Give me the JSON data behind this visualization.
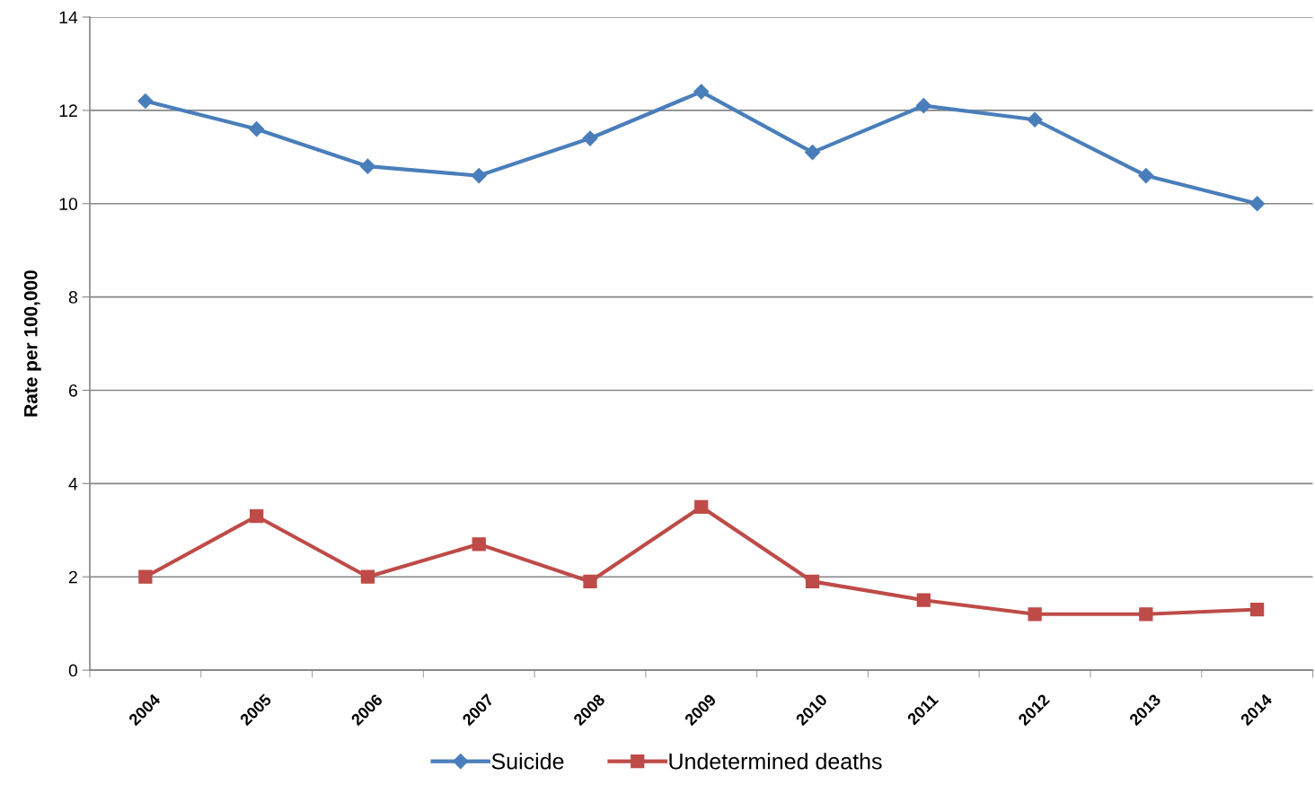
{
  "chart_data": {
    "type": "line",
    "ylabel": "Rate per 100,000",
    "categories": [
      "2004",
      "2005",
      "2006",
      "2007",
      "2008",
      "2009",
      "2010",
      "2011",
      "2012",
      "2013",
      "2014"
    ],
    "series": [
      {
        "name": "Suicide",
        "color": "#4a7ebb",
        "marker": "diamond",
        "values": [
          12.2,
          11.6,
          10.8,
          10.6,
          11.4,
          12.4,
          11.1,
          12.1,
          11.8,
          10.6,
          10.0
        ]
      },
      {
        "name": "Undetermined deaths",
        "color": "#be4b48",
        "marker": "square",
        "values": [
          2.0,
          3.3,
          2.0,
          2.7,
          1.9,
          3.5,
          1.9,
          1.5,
          1.2,
          1.2,
          1.3
        ]
      }
    ],
    "ylim": [
      0,
      14
    ],
    "yticks": [
      0,
      2,
      4,
      6,
      8,
      10,
      12,
      14
    ],
    "grid": "y",
    "legend": "bottom",
    "line_style": "solid"
  }
}
